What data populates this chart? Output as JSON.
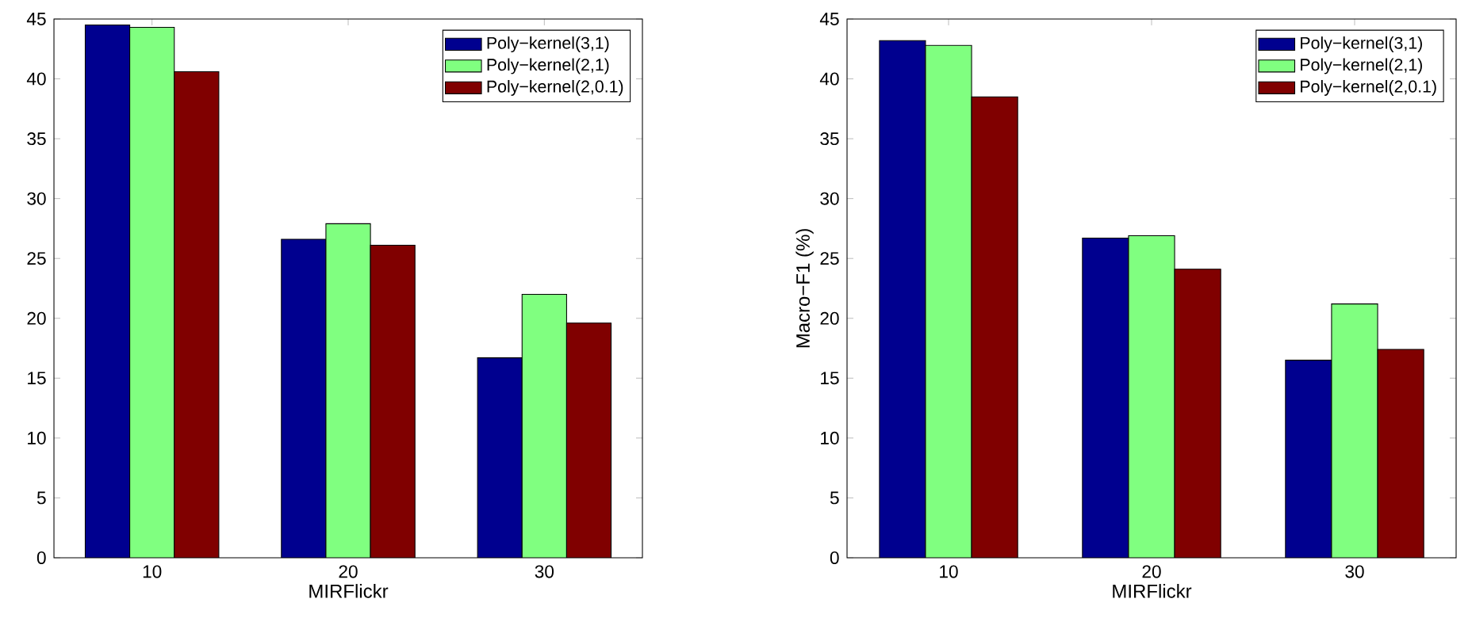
{
  "chart_data": [
    {
      "type": "bar",
      "xlabel": "MIRFlickr",
      "categories": [
        "10",
        "20",
        "30"
      ],
      "ylim": [
        0,
        45
      ],
      "yticks": [
        0,
        5,
        10,
        15,
        20,
        25,
        30,
        35,
        40,
        45
      ],
      "legend": "top right",
      "series": [
        {
          "name": "Poly−kernel(3,1)",
          "color": "#00008f",
          "values": [
            44.5,
            26.6,
            16.7
          ]
        },
        {
          "name": "Poly−kernel(2,1)",
          "color": "#80ff80",
          "values": [
            44.3,
            27.9,
            22.0
          ]
        },
        {
          "name": "Poly−kernel(2,0.1)",
          "color": "#800000",
          "values": [
            40.6,
            26.1,
            19.6
          ]
        }
      ]
    },
    {
      "type": "bar",
      "xlabel": "MIRFlickr",
      "ylabel": "Macro−F1 (%)",
      "categories": [
        "10",
        "20",
        "30"
      ],
      "ylim": [
        0,
        45
      ],
      "yticks": [
        0,
        5,
        10,
        15,
        20,
        25,
        30,
        35,
        40,
        45
      ],
      "legend": "top right",
      "series": [
        {
          "name": "Poly−kernel(3,1)",
          "color": "#00008f",
          "values": [
            43.2,
            26.7,
            16.5
          ]
        },
        {
          "name": "Poly−kernel(2,1)",
          "color": "#80ff80",
          "values": [
            42.8,
            26.9,
            21.2
          ]
        },
        {
          "name": "Poly−kernel(2,0.1)",
          "color": "#800000",
          "values": [
            38.5,
            24.1,
            17.4
          ]
        }
      ]
    }
  ]
}
